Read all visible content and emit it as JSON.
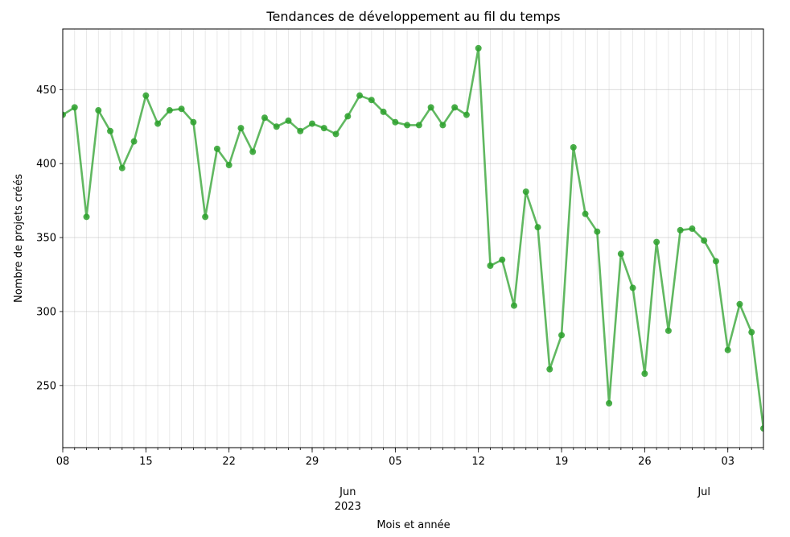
{
  "chart_data": {
    "type": "line",
    "title": "Tendances de développement au fil du temps",
    "xlabel": "Mois et année",
    "ylabel": "Nombre de projets créés",
    "x_start": "2023-05-08",
    "x": [
      "2023-05-08",
      "2023-05-09",
      "2023-05-10",
      "2023-05-11",
      "2023-05-12",
      "2023-05-13",
      "2023-05-14",
      "2023-05-15",
      "2023-05-16",
      "2023-05-17",
      "2023-05-18",
      "2023-05-19",
      "2023-05-20",
      "2023-05-21",
      "2023-05-22",
      "2023-05-23",
      "2023-05-24",
      "2023-05-25",
      "2023-05-26",
      "2023-05-27",
      "2023-05-28",
      "2023-05-29",
      "2023-05-30",
      "2023-05-31",
      "2023-06-01",
      "2023-06-02",
      "2023-06-03",
      "2023-06-04",
      "2023-06-05",
      "2023-06-06",
      "2023-06-07",
      "2023-06-08",
      "2023-06-09",
      "2023-06-10",
      "2023-06-11",
      "2023-06-12",
      "2023-06-13",
      "2023-06-14",
      "2023-06-15",
      "2023-06-16",
      "2023-06-17",
      "2023-06-18",
      "2023-06-19",
      "2023-06-20",
      "2023-06-21",
      "2023-06-22",
      "2023-06-23",
      "2023-06-24",
      "2023-06-25",
      "2023-06-26",
      "2023-06-27",
      "2023-06-28",
      "2023-06-29",
      "2023-06-30",
      "2023-07-01",
      "2023-07-02",
      "2023-07-03",
      "2023-07-04",
      "2023-07-05",
      "2023-07-06"
    ],
    "series": [
      {
        "values": [
          433,
          438,
          364,
          436,
          422,
          397,
          415,
          446,
          427,
          436,
          437,
          428,
          364,
          410,
          399,
          424,
          408,
          431,
          425,
          429,
          422,
          427,
          424,
          420,
          432,
          446,
          443,
          435,
          428,
          426,
          426,
          438,
          426,
          438,
          433,
          478,
          331,
          335,
          304,
          381,
          357,
          261,
          284,
          411,
          366,
          354,
          238,
          339,
          316,
          258,
          347,
          287,
          355,
          356,
          348,
          334,
          274,
          305,
          286,
          221
        ],
        "color": "#2ca02c"
      }
    ],
    "xlim": [
      "2023-05-08",
      "2023-07-06"
    ],
    "ylim": [
      208,
      491
    ],
    "yticks": [
      250,
      300,
      350,
      400,
      450
    ],
    "xticks": [
      {
        "date": "2023-05-08",
        "label": "08"
      },
      {
        "date": "2023-05-15",
        "label": "15"
      },
      {
        "date": "2023-05-22",
        "label": "22"
      },
      {
        "date": "2023-05-29",
        "label": "29"
      },
      {
        "date": "2023-06-05",
        "label": "05"
      },
      {
        "date": "2023-06-12",
        "label": "12"
      },
      {
        "date": "2023-06-19",
        "label": "19"
      },
      {
        "date": "2023-06-26",
        "label": "26"
      },
      {
        "date": "2023-07-03",
        "label": "03"
      }
    ],
    "month_labels": [
      {
        "date": "2023-06-01",
        "label": "Jun",
        "sub": "2023"
      },
      {
        "date": "2023-07-01",
        "label": "Jul",
        "sub": ""
      }
    ],
    "grid": true
  }
}
